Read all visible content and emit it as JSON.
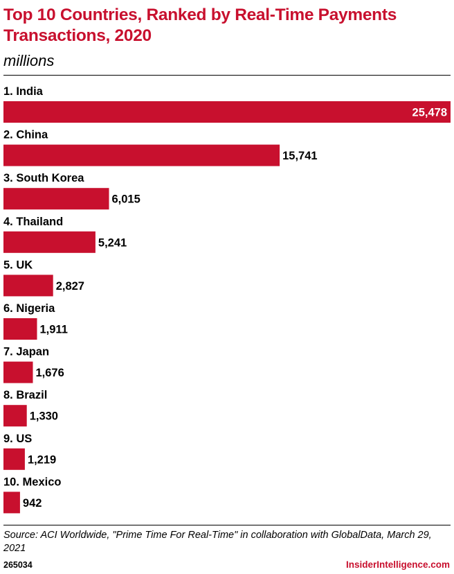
{
  "source": "Source: ACI Worldwide, \"Prime Time For Real-Time\" in collaboration with GlobalData, March 29, 2021",
  "chart_id": "265034",
  "brand": "InsiderIntelligence.com",
  "colors": {
    "bar": "#c8102e",
    "title": "#c8102e",
    "inside_label": "#ffffff",
    "text": "#000000"
  },
  "chart_data": {
    "type": "bar",
    "orientation": "horizontal",
    "title": "Top 10 Countries, Ranked by Real-Time Payments Transactions, 2020",
    "subtitle": "millions",
    "categories": [
      "1. India",
      "2. China",
      "3. South Korea",
      "4. Thailand",
      "5. UK",
      "6. Nigeria",
      "7. Japan",
      "8. Brazil",
      "9. US",
      "10. Mexico"
    ],
    "values": [
      25478,
      15741,
      6015,
      5241,
      2827,
      1911,
      1676,
      1330,
      1219,
      942
    ],
    "value_labels": [
      "25,478",
      "15,741",
      "6,015",
      "5,241",
      "2,827",
      "1,911",
      "1,676",
      "1,330",
      "1,219",
      "942"
    ],
    "xlim": [
      0,
      25478
    ],
    "grid": false,
    "legend": "none"
  }
}
